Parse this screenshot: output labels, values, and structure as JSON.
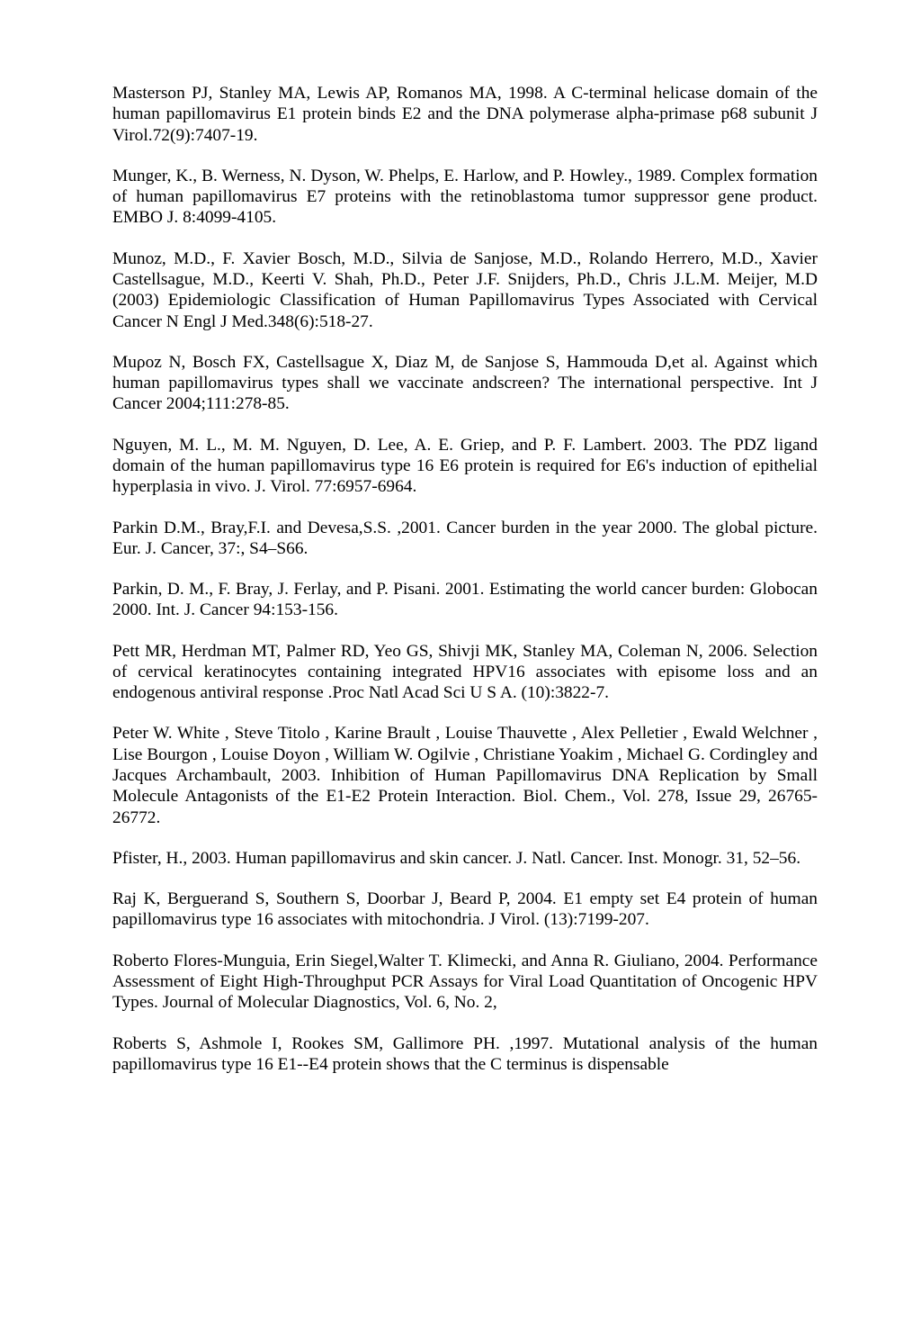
{
  "background_color": "#ffffff",
  "text_color": "#000000",
  "font_family": "Times New Roman",
  "font_size_pt": 14.5,
  "references": [
    "Masterson PJ, Stanley MA, Lewis AP, Romanos MA, 1998. A C-terminal helicase domain of the human papillomavirus E1 protein binds E2 and the DNA polymerase alpha-primase p68 subunit J Virol.72(9):7407-19.",
    "Munger, K., B. Werness, N. Dyson, W. Phelps, E. Harlow, and P. Howley., 1989. Complex formation of human papillomavirus E7 proteins with the retinoblastoma tumor suppressor gene product. EMBO J. 8:4099-4105.",
    "Munoz, M.D., F. Xavier Bosch, M.D., Silvia de Sanjose, M.D., Rolando Herrero, M.D., Xavier Castellsague, M.D., Keerti V. Shah, Ph.D., Peter J.F. Snijders, Ph.D., Chris J.L.M. Meijer, M.D (2003) Epidemiologic Classification of Human Papillomavirus Types Associated with Cervical Cancer N Engl J Med.348(6):518-27.",
    "Muρoz N, Bosch FX, Castellsague X, Diaz M, de Sanjose S, Hammouda D,et al. Against which human papillomavirus types shall we vaccinate andscreen? The international perspective. Int J Cancer 2004;111:278-85.",
    "Nguyen, M. L., M. M. Nguyen, D. Lee, A. E. Griep, and P. F. Lambert. 2003. The PDZ ligand domain of the human papillomavirus type 16 E6 protein is required for E6's induction of epithelial hyperplasia in vivo. J. Virol. 77:6957-6964.",
    "Parkin D.M., Bray,F.I. and Devesa,S.S. ,2001. Cancer burden in the year 2000. The global picture. Eur. J. Cancer, 37:, S4–S66.",
    "Parkin, D. M., F. Bray, J. Ferlay, and P. Pisani. 2001. Estimating the world cancer burden: Globocan 2000. Int. J. Cancer 94:153-156.",
    "Pett MR, Herdman MT, Palmer RD, Yeo GS, Shivji MK, Stanley MA, Coleman N, 2006. Selection of cervical keratinocytes containing integrated HPV16 associates with episome loss and an endogenous antiviral response .Proc Natl Acad Sci U S A. (10):3822-7.",
    "Peter W. White , Steve Titolo , Karine Brault , Louise Thauvette , Alex Pelletier , Ewald Welchner , Lise Bourgon , Louise Doyon , William W. Ogilvie , Christiane Yoakim , Michael G. Cordingley and Jacques Archambault, 2003. Inhibition of Human Papillomavirus DNA Replication by Small Molecule Antagonists of the E1-E2 Protein Interaction. Biol. Chem., Vol. 278, Issue 29, 26765-26772.",
    "Pfister, H., 2003. Human papillomavirus and skin cancer. J. Natl. Cancer. Inst. Monogr. 31, 52–56.",
    "Raj K, Berguerand S, Southern S, Doorbar J, Beard P, 2004. E1 empty set E4 protein of human papillomavirus type 16 associates with mitochondria. J Virol. (13):7199-207.",
    "Roberto Flores-Munguia, Erin Siegel,Walter T. Klimecki, and Anna R. Giuliano, 2004. Performance Assessment of Eight High-Throughput PCR Assays for Viral Load Quantitation of Oncogenic HPV Types. Journal of Molecular Diagnostics, Vol. 6, No. 2,",
    "Roberts S, Ashmole I, Rookes SM, Gallimore PH. ,1997. Mutational analysis of the human papillomavirus type 16 E1--E4 protein shows that the C terminus is dispensable"
  ]
}
